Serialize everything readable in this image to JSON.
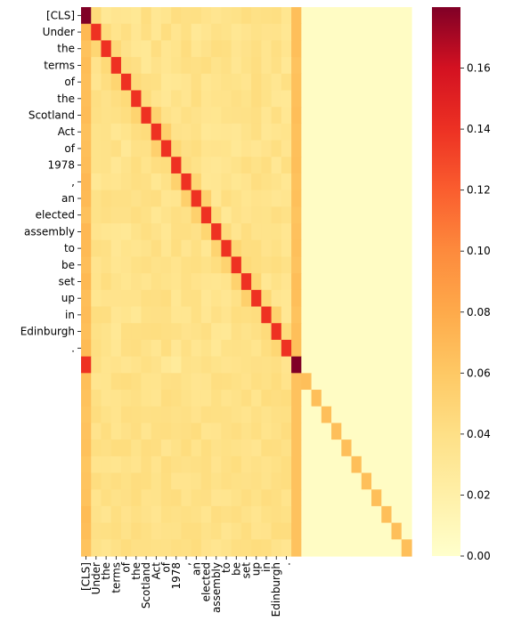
{
  "chart_data": {
    "type": "heatmap",
    "title": "",
    "xlabel": "",
    "ylabel": "",
    "tokens": [
      "[CLS]",
      "Under",
      "the",
      "terms",
      "of",
      "the",
      "Scotland",
      "Act",
      "of",
      "1978",
      ",",
      "an",
      "elected",
      "assembly",
      "to",
      "be",
      "set",
      "up",
      "in",
      "Edinburgh",
      "."
    ],
    "matrix_size": 33,
    "x_tick_labels": [
      "[CLS]",
      "Under",
      "the",
      "terms",
      "of",
      "the",
      "Scotland",
      "Act",
      "of",
      "1978",
      ",",
      "an",
      "elected",
      "assembly",
      "to",
      "be",
      "set",
      "up",
      "in",
      "Edinburgh",
      "."
    ],
    "y_tick_labels": [
      "[CLS]",
      "Under",
      "the",
      "terms",
      "of",
      "the",
      "Scotland",
      "Act",
      "of",
      "1978",
      ",",
      "an",
      "elected",
      "assembly",
      "to",
      "be",
      "set",
      "up",
      "in",
      "Edinburgh",
      "."
    ],
    "value_range": [
      0.0,
      0.18
    ],
    "colormap": "YlOrRd",
    "colorbar_ticks": [
      "0.00",
      "0.02",
      "0.04",
      "0.06",
      "0.08",
      "0.10",
      "0.12",
      "0.14",
      "0.16"
    ],
    "colorbar_tick_values": [
      0.0,
      0.02,
      0.04,
      0.06,
      0.08,
      0.1,
      0.12,
      0.14,
      0.16
    ],
    "description_values": {
      "first_cell": 0.18,
      "token_diagonal": 0.125,
      "sep_row_first_col": 0.125,
      "sep_diagonal": 0.18,
      "pad_diagonal": 0.06,
      "first_column_base": 0.058,
      "sep_column_base": 0.057,
      "token_block_base": 0.034,
      "pad_block": 0.004
    }
  }
}
